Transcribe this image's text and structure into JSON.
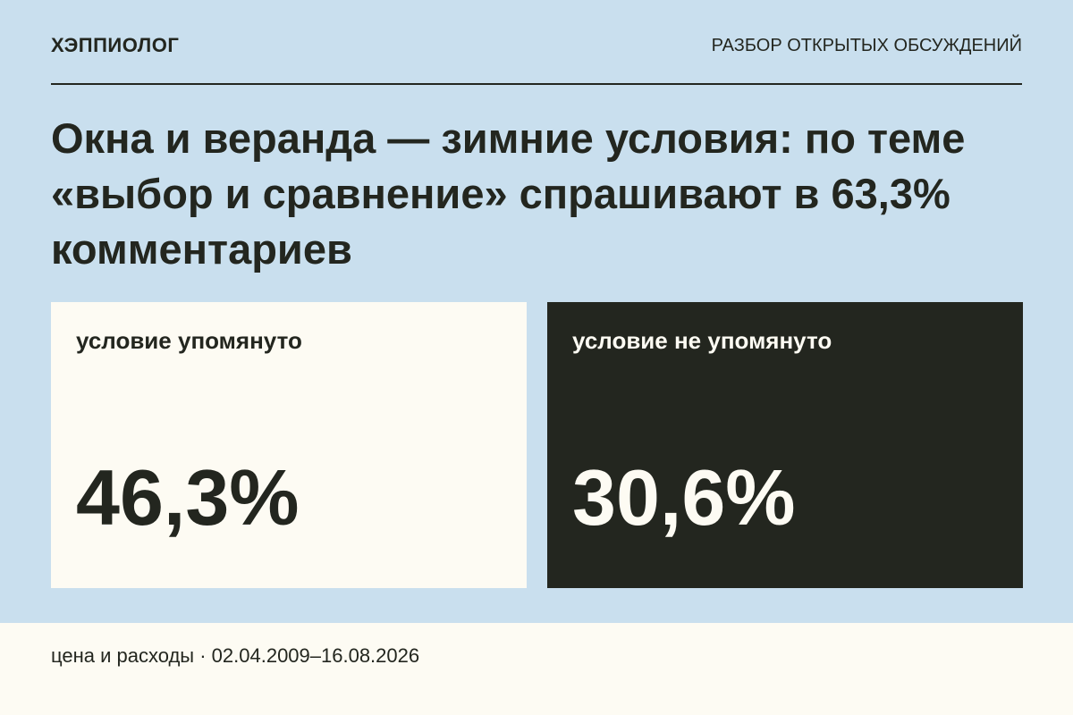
{
  "header": {
    "brand": "ХЭППИОЛОГ",
    "section": "РАЗБОР ОТКРЫТЫХ ОБСУЖДЕНИЙ"
  },
  "title": "Окна и веранда — зимние условия: по теме «выбор и сравнение» спрашивают в 63,3% комментариев",
  "cards": [
    {
      "label": "условие упомянуто",
      "value": "46,3%"
    },
    {
      "label": "условие не упомянуто",
      "value": "30,6%"
    }
  ],
  "footer": "цена и расходы · 02.04.2009–16.08.2026"
}
